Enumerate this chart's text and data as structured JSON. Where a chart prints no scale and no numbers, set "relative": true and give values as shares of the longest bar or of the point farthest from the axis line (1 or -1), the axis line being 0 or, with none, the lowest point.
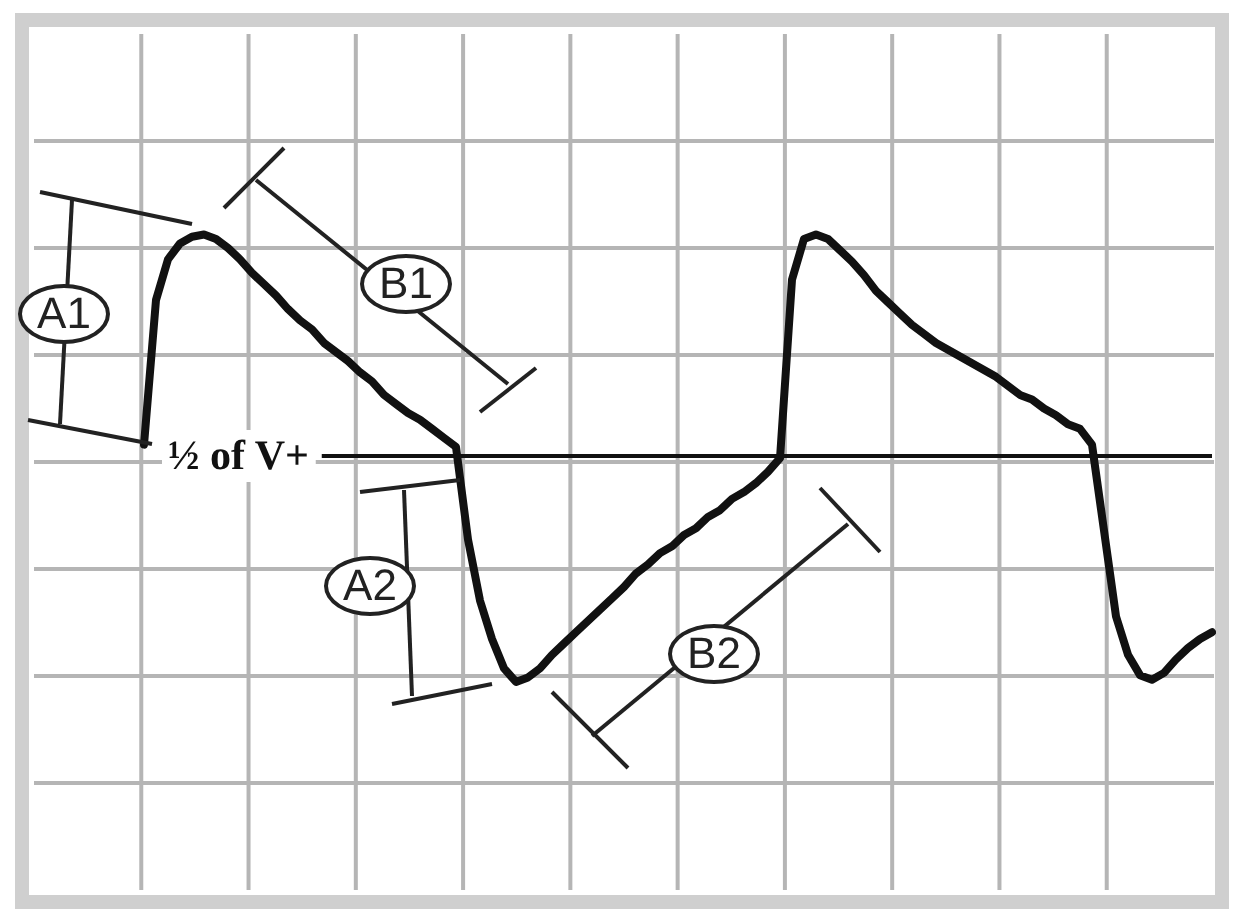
{
  "chart_data": {
    "type": "line",
    "relative": true,
    "grid": true,
    "color": "#111111",
    "categories": [
      null,
      null,
      null,
      null,
      null,
      null,
      null,
      null,
      null,
      null,
      null,
      null,
      null,
      null,
      null,
      null,
      null,
      null,
      null,
      null,
      null,
      null,
      null,
      null,
      null,
      null,
      null,
      null,
      null,
      null,
      null,
      null,
      null,
      null,
      null,
      null,
      null,
      null,
      null,
      null,
      null,
      null,
      null,
      null,
      null,
      null,
      null,
      null,
      null,
      null,
      null,
      null,
      null,
      null,
      null,
      null,
      null,
      null,
      null,
      null,
      null,
      null,
      null,
      null,
      null,
      null,
      null,
      null,
      null,
      null,
      null,
      null,
      null,
      null,
      null,
      null,
      null,
      null,
      null,
      null,
      null,
      null,
      null,
      null,
      null,
      null,
      null,
      null,
      null,
      null
    ],
    "values": [
      0.05,
      0.69,
      0.87,
      0.94,
      0.97,
      0.98,
      0.96,
      0.92,
      0.87,
      0.81,
      0.76,
      0.71,
      0.65,
      0.6,
      0.56,
      0.5,
      0.46,
      0.42,
      0.37,
      0.33,
      0.27,
      0.23,
      0.19,
      0.16,
      0.12,
      0.08,
      0.04,
      -0.37,
      -0.64,
      -0.81,
      -0.94,
      -1,
      -0.98,
      -0.94,
      -0.88,
      -0.83,
      -0.78,
      -0.73,
      -0.68,
      -0.63,
      -0.58,
      -0.52,
      -0.48,
      -0.43,
      -0.4,
      -0.35,
      -0.32,
      -0.27,
      -0.24,
      -0.19,
      -0.16,
      -0.12,
      -0.07,
      -0.01,
      0.78,
      0.96,
      0.98,
      0.96,
      0.91,
      0.86,
      0.8,
      0.73,
      0.68,
      0.63,
      0.58,
      0.54,
      0.5,
      0.47,
      0.44,
      0.41,
      0.38,
      0.35,
      0.31,
      0.27,
      0.25,
      0.21,
      0.18,
      0.14,
      0.12,
      0.05,
      -0.33,
      -0.71,
      -0.88,
      -0.97,
      -0.99,
      -0.96,
      -0.9,
      -0.85,
      -0.81,
      -0.78
    ],
    "ref_lines": [
      {
        "axis": "y",
        "value": 0,
        "label": "½ of V+"
      }
    ],
    "annotations": [
      "A1",
      "B1",
      "A2",
      "B2"
    ]
  }
}
